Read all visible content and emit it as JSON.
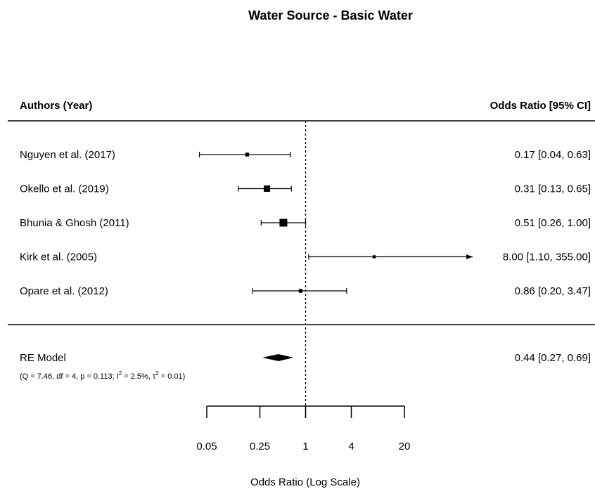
{
  "chart_data": {
    "type": "forest",
    "title": "Water Source - Basic Water",
    "headers": {
      "left": "Authors (Year)",
      "right": "Odds Ratio [95% CI]"
    },
    "studies": [
      {
        "label": "Nguyen et al. (2017)",
        "estimate": 0.17,
        "lower": 0.04,
        "upper": 0.63,
        "ci_text": "0.17 [0.04,   0.63]",
        "weight": 0.3
      },
      {
        "label": "Okello et al. (2019)",
        "estimate": 0.31,
        "lower": 0.13,
        "upper": 0.65,
        "ci_text": "0.31 [0.13,   0.65]",
        "weight": 0.75
      },
      {
        "label": "Bhunia & Ghosh (2011)",
        "estimate": 0.51,
        "lower": 0.26,
        "upper": 1.0,
        "ci_text": "0.51 [0.26,   1.00]",
        "weight": 1.0
      },
      {
        "label": "Kirk et al. (2005)",
        "estimate": 8.0,
        "lower": 1.1,
        "upper": 355.0,
        "ci_text": "8.00 [1.10, 355.00]",
        "weight": 0.18,
        "arrow_upper": true
      },
      {
        "label": "Opare et al. (2012)",
        "estimate": 0.86,
        "lower": 0.2,
        "upper": 3.47,
        "ci_text": "0.86 [0.20,   3.47]",
        "weight": 0.3
      }
    ],
    "summary": {
      "label": "RE Model",
      "estimate": 0.44,
      "lower": 0.27,
      "upper": 0.69,
      "ci_text": "0.44 [0.27,   0.69]",
      "stats": {
        "q": "(Q = 7.46, df = 4, p = 0.113; I",
        "i2_sup": "2",
        "i2": " = 2.5%, τ",
        "tau2_sup": "2",
        "tau2": " = 0.01)"
      }
    },
    "x_axis": {
      "label": "Odds Ratio (Log Scale)",
      "scale": "log",
      "ticks": [
        0.05,
        0.25,
        1,
        4,
        20
      ],
      "tick_labels": [
        "0.05",
        "0.25",
        "1",
        "4",
        "20"
      ],
      "xlim": [
        0.05,
        20
      ],
      "reference_line": 1
    }
  }
}
